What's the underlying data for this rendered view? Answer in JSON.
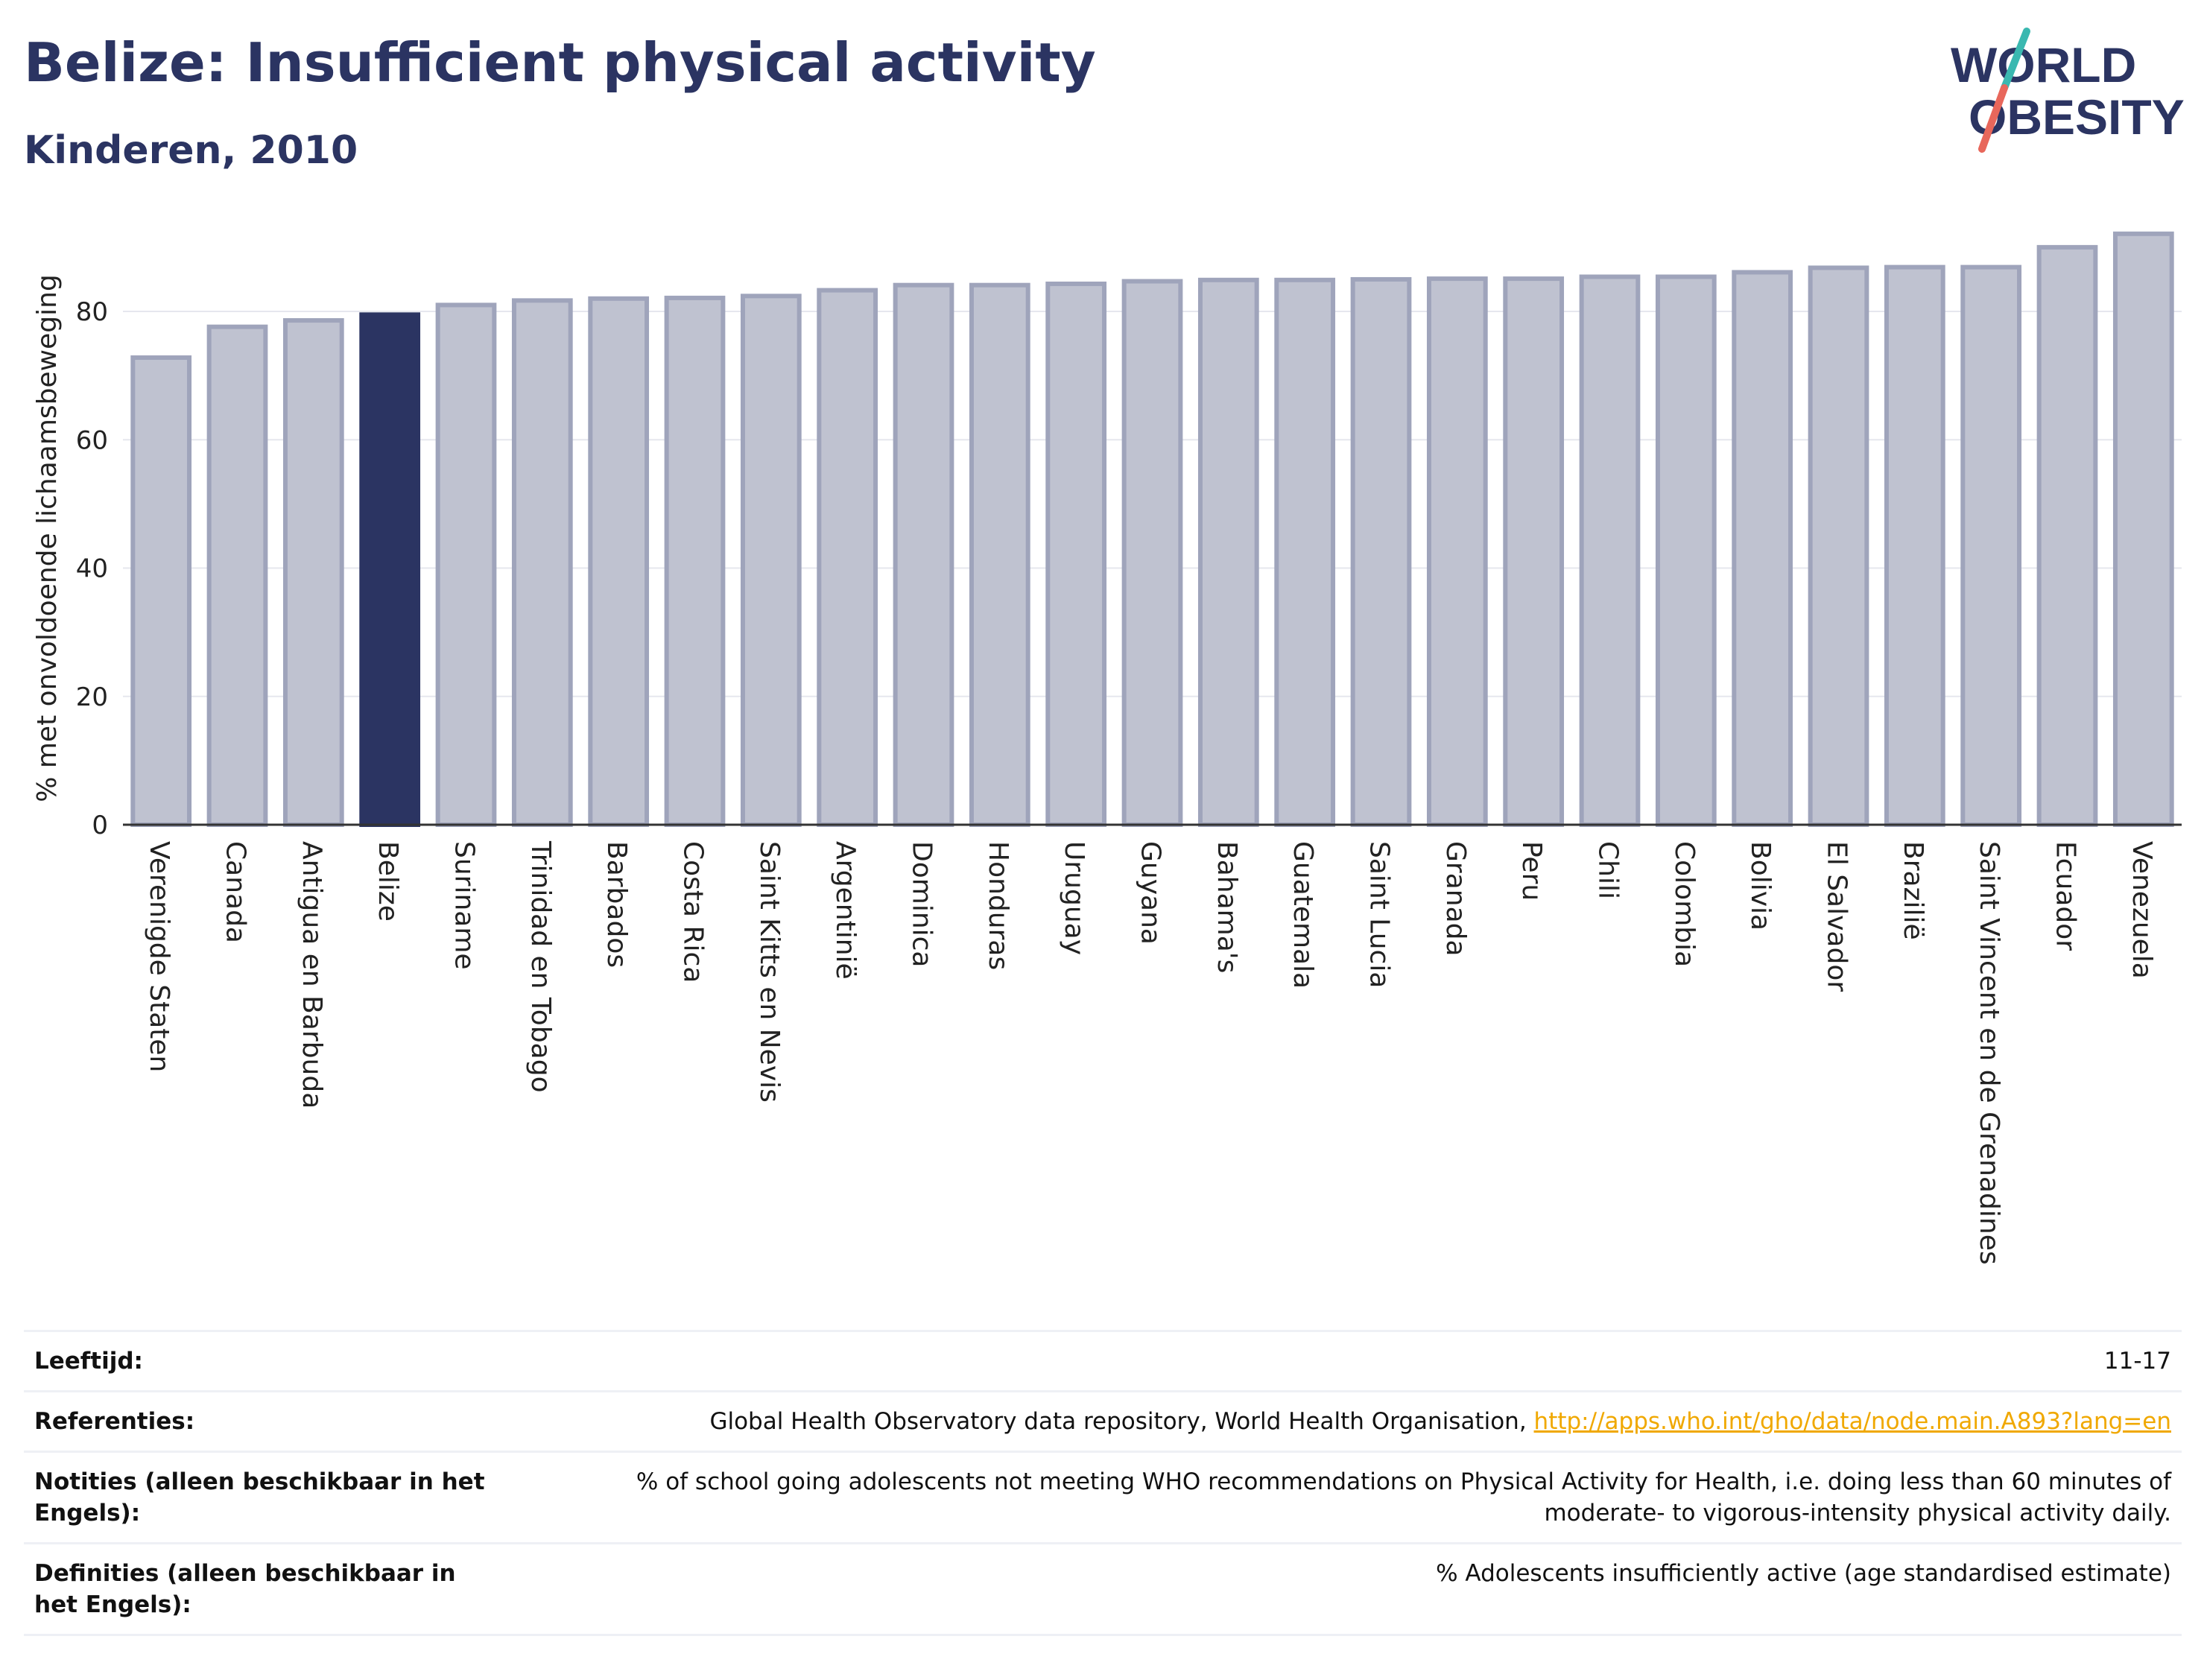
{
  "header": {
    "title": "Belize: Insufficient physical activity",
    "subtitle": "Kinderen, 2010"
  },
  "logo": {
    "line1": "WORLD",
    "line2": "OBESITY"
  },
  "colors": {
    "bar": "#bfc2d0",
    "bar_stroke": "#9fa4bb",
    "highlight": "#2b3462",
    "axis": "#333333",
    "grid": "#e6e7ee"
  },
  "chart_data": {
    "type": "bar",
    "ylabel": "% met onvoldoende lichaamsbeweging",
    "xlabel": "",
    "ylim": [
      0,
      95
    ],
    "yticks": [
      0,
      20,
      40,
      60,
      80
    ],
    "grid": true,
    "highlight": "Belize",
    "categories": [
      "Verenigde Staten",
      "Canada",
      "Antigua en Barbuda",
      "Belize",
      "Suriname",
      "Trinidad en Tobago",
      "Barbados",
      "Costa Rica",
      "Saint Kitts en Nevis",
      "Argentinië",
      "Dominica",
      "Honduras",
      "Uruguay",
      "Guyana",
      "Bahama's",
      "Guatemala",
      "Saint Lucia",
      "Granada",
      "Peru",
      "Chili",
      "Colombia",
      "Bolivia",
      "El Salvador",
      "Brazilië",
      "Saint Vincent en de Grenadines",
      "Ecuador",
      "Venezuela"
    ],
    "values": [
      72.8,
      77.6,
      78.6,
      79.5,
      81.0,
      81.7,
      82.0,
      82.1,
      82.4,
      83.3,
      84.1,
      84.1,
      84.3,
      84.7,
      84.9,
      84.9,
      85.0,
      85.1,
      85.1,
      85.4,
      85.4,
      86.1,
      86.8,
      86.9,
      86.9,
      90.0,
      92.1
    ]
  },
  "meta": [
    {
      "key": "Leeftijd:",
      "value": "11-17"
    },
    {
      "key": "Referenties:",
      "value": "Global Health Observatory data repository, World Health Organisation, ",
      "link": "http://apps.who.int/gho/data/node.main.A893?lang=en"
    },
    {
      "key": "Notities (alleen beschikbaar in het Engels):",
      "value": "% of school going adolescents not meeting WHO recommendations on Physical Activity for Health, i.e. doing less than 60 minutes of moderate- to vigorous-intensity physical activity daily."
    },
    {
      "key": "Definities (alleen beschikbaar in het Engels):",
      "value": "% Adolescents insufficiently active (age standardised estimate)"
    }
  ]
}
